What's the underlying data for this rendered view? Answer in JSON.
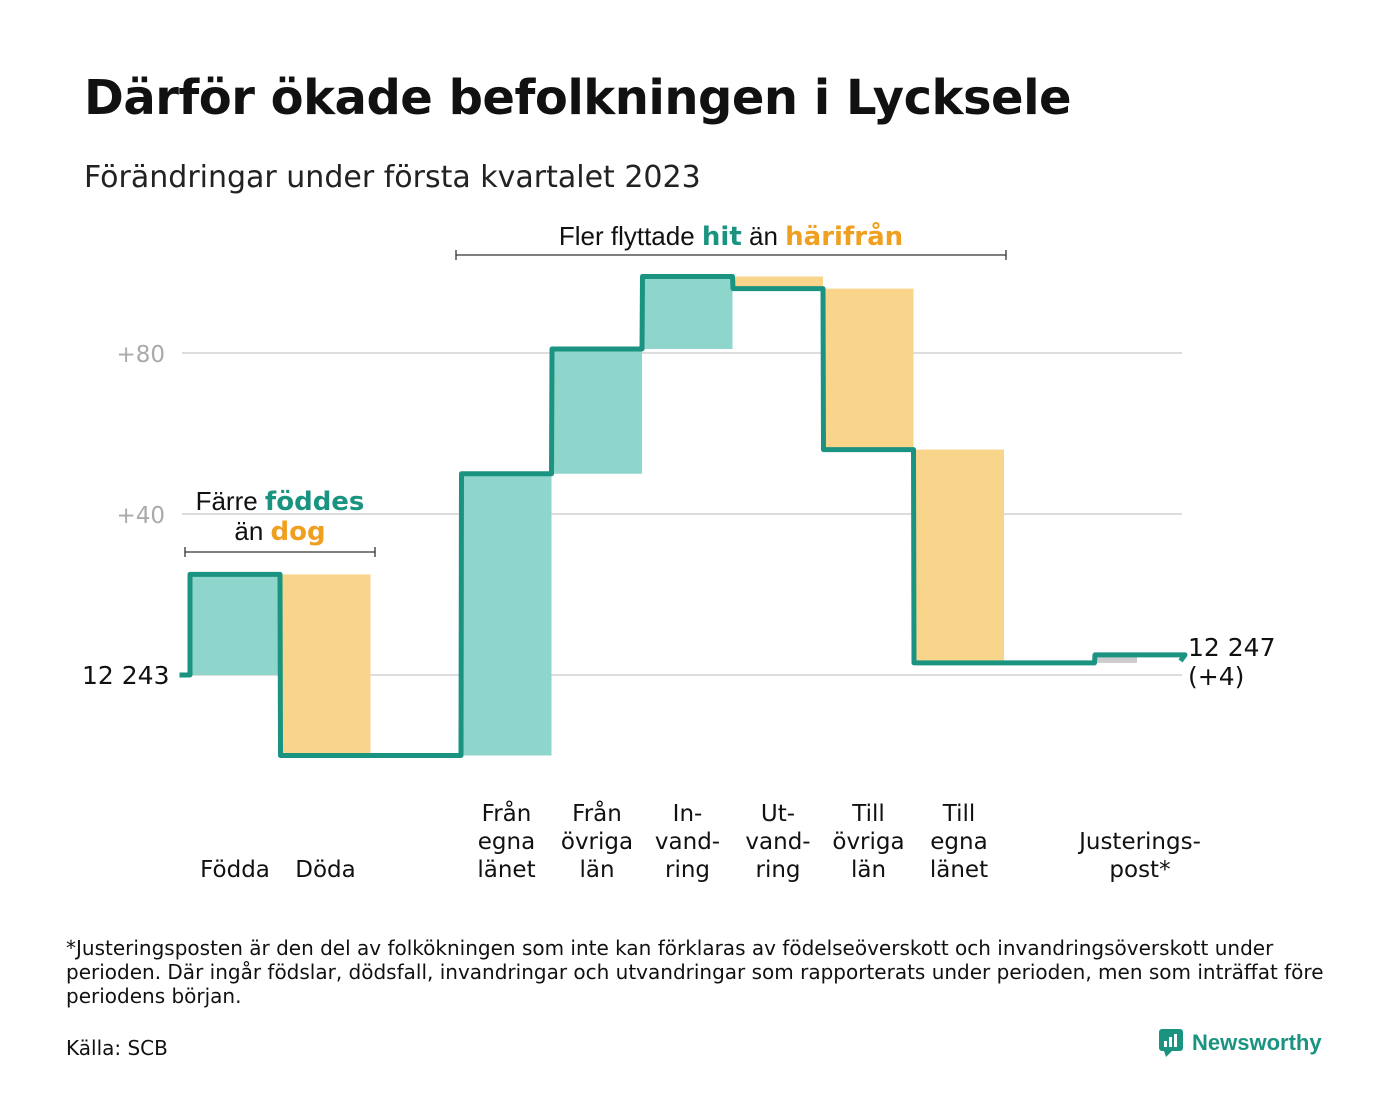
{
  "header": {
    "title": "Därför ökade befolkningen i Lycksele",
    "subtitle": "Förändringar under första kvartalet 2023"
  },
  "colors": {
    "teal_line": "#1a9480",
    "teal_fill": "#8ed5cc",
    "orange_fill": "#f9d58c",
    "orange_text": "#f0a020",
    "grey_fill": "#cccccc",
    "grid": "#dddddd"
  },
  "annotations": {
    "births_deaths": {
      "line1_prefix": "Färre ",
      "line1_hl": "föddes",
      "line2_prefix": "än ",
      "line2_hl": "dog"
    },
    "migration": {
      "prefix": "Fler flyttade ",
      "hl1": "hit",
      "mid": " än ",
      "hl2": "härifrån"
    }
  },
  "chart_data": {
    "type": "waterfall",
    "start": {
      "label": "12 243",
      "value": 0
    },
    "end": {
      "label_line1": "12 247",
      "label_line2": "(+4)",
      "value": 4
    },
    "ylim": [
      -20,
      100
    ],
    "yticks": [
      {
        "value": 0,
        "label": ""
      },
      {
        "value": 40,
        "label": "+40"
      },
      {
        "value": 80,
        "label": "+80"
      }
    ],
    "categories": [
      {
        "lines": [
          "Födda"
        ],
        "delta": 25,
        "kind": "in"
      },
      {
        "lines": [
          "Döda"
        ],
        "delta": -45,
        "kind": "out"
      },
      {
        "lines": [
          ""
        ],
        "delta": 0,
        "kind": "spacer"
      },
      {
        "lines": [
          "Från",
          "egna",
          "länet"
        ],
        "delta": 70,
        "kind": "in"
      },
      {
        "lines": [
          "Från",
          "övriga",
          "län"
        ],
        "delta": 31,
        "kind": "in"
      },
      {
        "lines": [
          "In-",
          "vand-",
          "ring"
        ],
        "delta": 18,
        "kind": "in"
      },
      {
        "lines": [
          "Ut-",
          "vand-",
          "ring"
        ],
        "delta": -3,
        "kind": "out"
      },
      {
        "lines": [
          "Till",
          "övriga",
          "län"
        ],
        "delta": -40,
        "kind": "out"
      },
      {
        "lines": [
          "Till",
          "egna",
          "länet"
        ],
        "delta": -53,
        "kind": "out"
      },
      {
        "lines": [
          ""
        ],
        "delta": 0,
        "kind": "spacer"
      },
      {
        "lines": [
          "Justerings-",
          "post*"
        ],
        "delta": 2,
        "kind": "adjust"
      }
    ]
  },
  "footer": {
    "footnote": "*Justeringsposten är den del av folkökningen som inte kan förklaras av födelseöverskott och invandringsöverskott under perioden. Där ingår födslar, dödsfall, invandringar och utvandringar som rapporterats under perioden, men som inträffat före periodens början.",
    "source": "Källa: SCB",
    "brand": "Newsworthy"
  }
}
